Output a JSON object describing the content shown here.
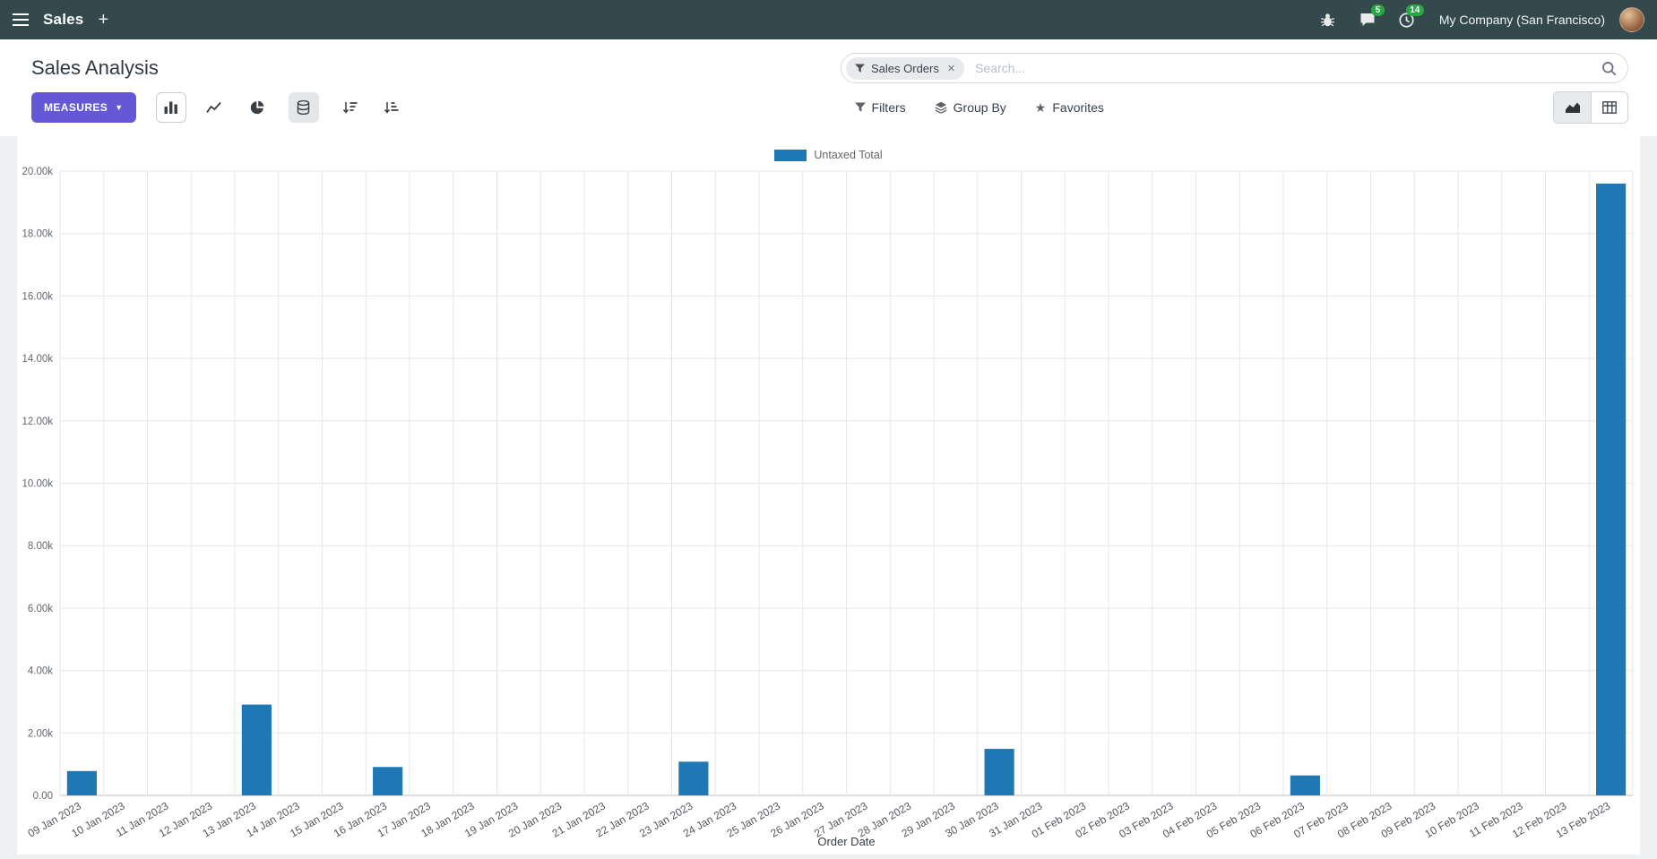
{
  "navbar": {
    "app_name": "Sales",
    "company": "My Company (San Francisco)",
    "chat_badge": "5",
    "activity_badge": "14"
  },
  "control_panel": {
    "title": "Sales Analysis",
    "measures_label": "Measures",
    "filters_label": "Filters",
    "group_by_label": "Group By",
    "favorites_label": "Favorites",
    "search": {
      "facet": "Sales Orders",
      "placeholder": "Search..."
    }
  },
  "icons": {
    "navbar": [
      "apps-menu",
      "plus",
      "bug",
      "chat-bubble",
      "clock"
    ],
    "toolbar": [
      "bar-chart",
      "line-chart",
      "pie-chart",
      "stacked-database",
      "sort-descending",
      "sort-ascending",
      "funnel",
      "layers",
      "star"
    ],
    "view_switcher": [
      "area-chart-view",
      "pivot-table-view"
    ],
    "search": [
      "funnel",
      "magnifier",
      "close"
    ]
  },
  "chart_data": {
    "type": "bar",
    "title": "",
    "legend": [
      "Untaxed Total"
    ],
    "series_color": "#1f77b4",
    "grid": true,
    "legend_position": "top-center",
    "xlabel": "Order Date",
    "ylabel": "",
    "ylim": [
      0,
      20000
    ],
    "ytick_step": 2000,
    "ytick_format": "thousands-k",
    "categories": [
      "09 Jan 2023",
      "10 Jan 2023",
      "11 Jan 2023",
      "12 Jan 2023",
      "13 Jan 2023",
      "14 Jan 2023",
      "15 Jan 2023",
      "16 Jan 2023",
      "17 Jan 2023",
      "18 Jan 2023",
      "19 Jan 2023",
      "20 Jan 2023",
      "21 Jan 2023",
      "22 Jan 2023",
      "23 Jan 2023",
      "24 Jan 2023",
      "25 Jan 2023",
      "26 Jan 2023",
      "27 Jan 2023",
      "28 Jan 2023",
      "29 Jan 2023",
      "30 Jan 2023",
      "31 Jan 2023",
      "01 Feb 2023",
      "02 Feb 2023",
      "03 Feb 2023",
      "04 Feb 2023",
      "05 Feb 2023",
      "06 Feb 2023",
      "07 Feb 2023",
      "08 Feb 2023",
      "09 Feb 2023",
      "10 Feb 2023",
      "11 Feb 2023",
      "12 Feb 2023",
      "13 Feb 2023"
    ],
    "values": [
      780,
      0,
      0,
      0,
      2910,
      0,
      0,
      910,
      0,
      0,
      0,
      0,
      0,
      0,
      1080,
      0,
      0,
      0,
      0,
      0,
      0,
      1490,
      0,
      0,
      0,
      0,
      0,
      0,
      640,
      0,
      0,
      0,
      0,
      0,
      0,
      19600
    ]
  }
}
